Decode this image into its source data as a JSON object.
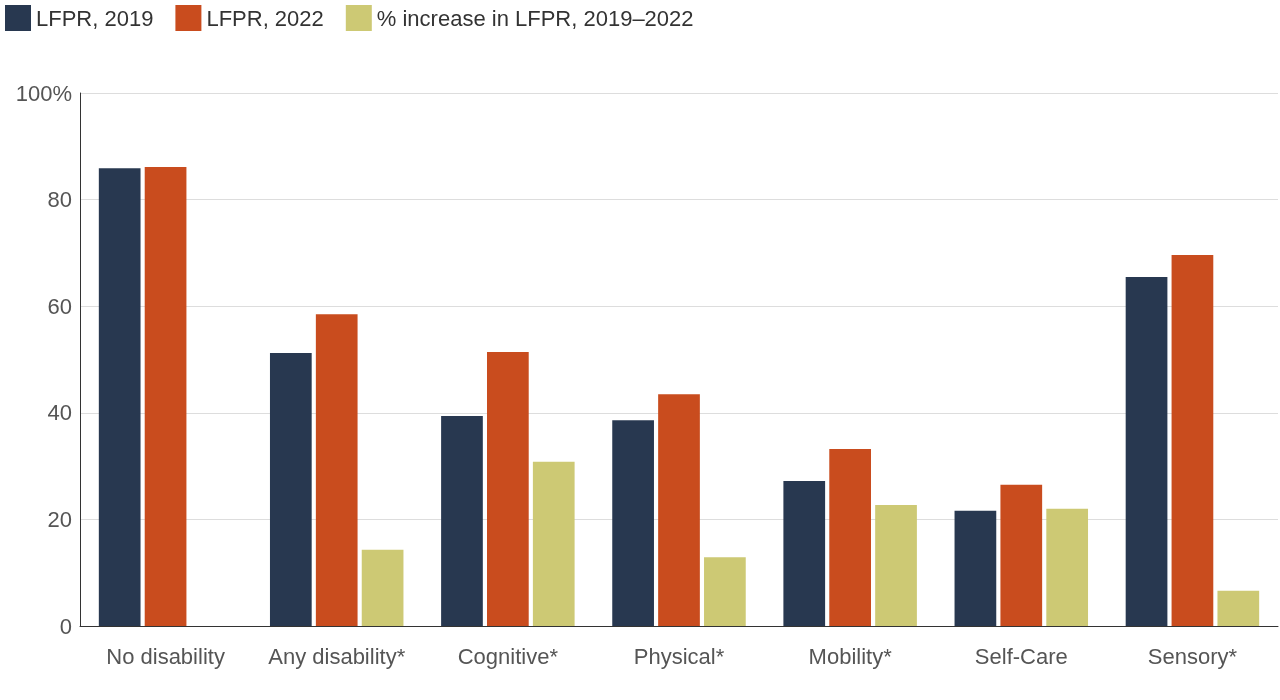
{
  "chart_data": {
    "type": "bar",
    "categories": [
      "No disability",
      "Any disability*",
      "Cognitive*",
      "Physical*",
      "Mobility*",
      "Self-Care",
      "Sensory*"
    ],
    "series": [
      {
        "name": "LFPR, 2019",
        "color": "#283850",
        "values": [
          85.9,
          51.2,
          39.4,
          38.6,
          27.2,
          21.6,
          65.5
        ]
      },
      {
        "name": "LFPR, 2022",
        "color": "#c94c1e",
        "values": [
          86.1,
          58.5,
          51.4,
          43.5,
          33.2,
          26.5,
          69.6
        ]
      },
      {
        "name": "% increase in LFPR, 2019–2022",
        "color": "#cdc974",
        "values": [
          null,
          14.3,
          30.8,
          12.9,
          22.7,
          22.0,
          6.6
        ]
      }
    ],
    "ylim": [
      0,
      100
    ],
    "yticks": [
      0,
      20,
      40,
      60,
      80,
      {
        "value": 100,
        "label": "100%"
      }
    ],
    "grid": "y",
    "legend": "top left"
  }
}
